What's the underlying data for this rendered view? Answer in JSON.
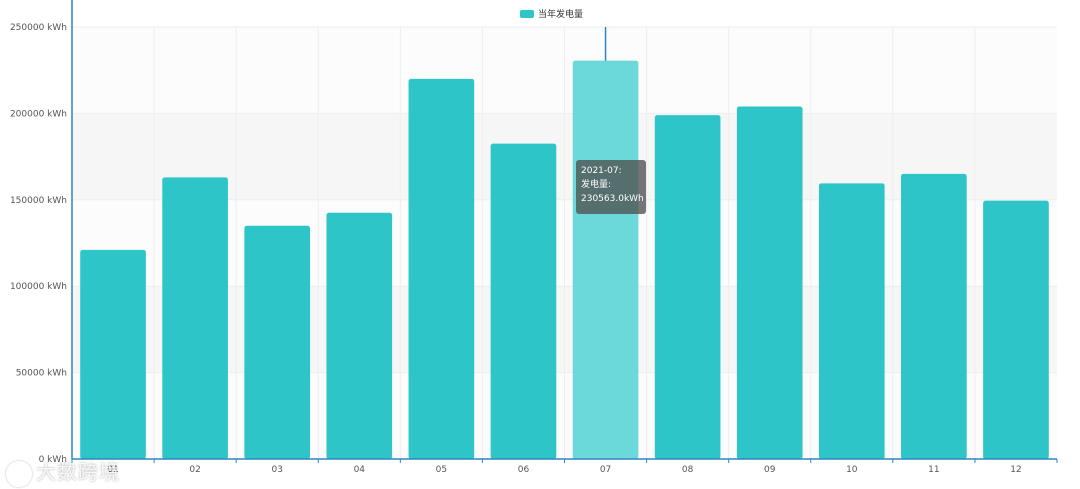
{
  "chart_data": {
    "type": "bar",
    "legend": {
      "label": "当年发电量",
      "position": "top-center"
    },
    "categories": [
      "01",
      "02",
      "03",
      "04",
      "05",
      "06",
      "07",
      "08",
      "09",
      "10",
      "11",
      "12"
    ],
    "series": [
      {
        "name": "当年发电量",
        "values": [
          121000,
          163000,
          135000,
          142500,
          220000,
          182500,
          230563,
          199000,
          204000,
          159500,
          165000,
          149500
        ]
      }
    ],
    "y_ticks": [
      "0 kWh",
      "50000 kWh",
      "100000 kWh",
      "150000 kWh",
      "200000 kWh",
      "250000 kWh"
    ],
    "ylim": [
      0,
      250000
    ],
    "highlighted_index": 6,
    "grid": true
  },
  "tooltip": {
    "line1": "2021-07:",
    "line2": "发电量:",
    "line3": "230563.0kWh"
  },
  "colors": {
    "bar": "#2ec5c9",
    "bar_highlight": "#6bd8da",
    "axis": "#2e86c1"
  },
  "watermark": {
    "text": "大数跨境"
  }
}
